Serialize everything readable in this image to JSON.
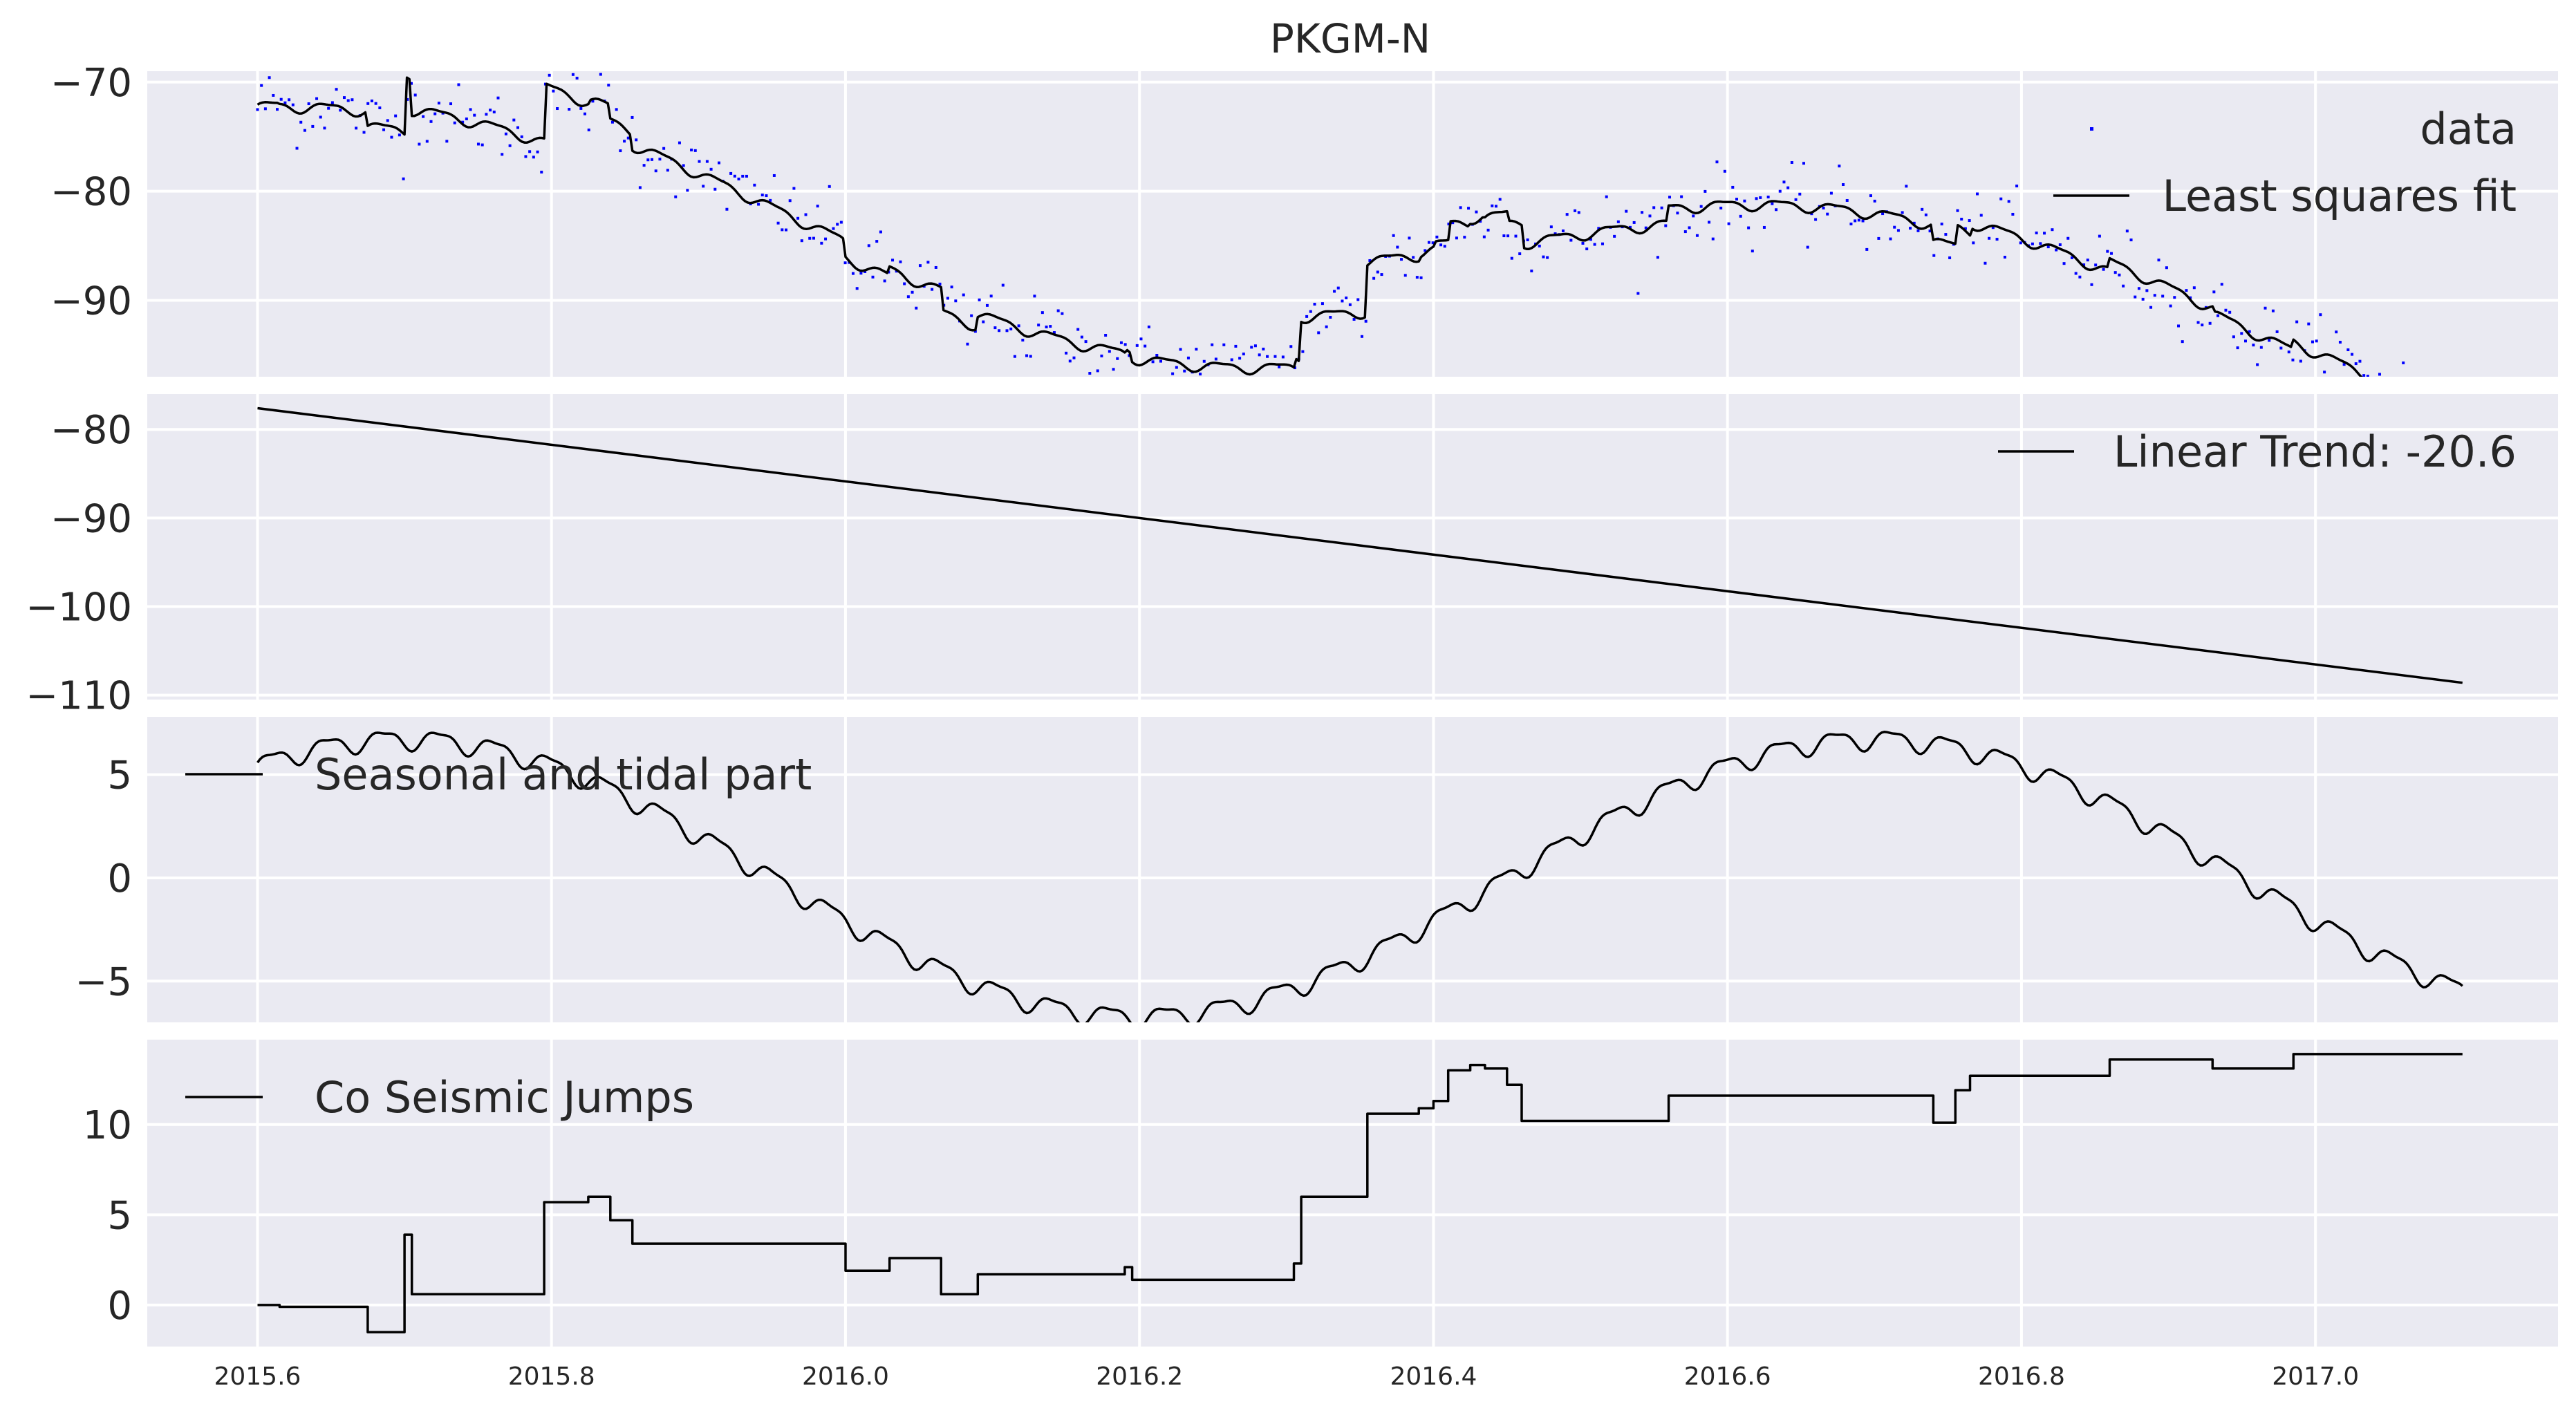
{
  "chart_data": {
    "type": "line",
    "title": "PKGM-N",
    "x_ticks": [
      "2015.6",
      "2015.8",
      "2016.0",
      "2016.2",
      "2016.4",
      "2016.6",
      "2016.8",
      "2017.0"
    ],
    "xlim": [
      2015.525,
      2017.165
    ],
    "grid": true,
    "panels": [
      {
        "name": "observations",
        "ylim": [
          -97,
          -69
        ],
        "y_ticks": [
          "−70",
          "−80",
          "−90"
        ],
        "y_tick_values": [
          -70,
          -80,
          -90
        ],
        "legend_position": "top-right",
        "series": [
          {
            "name": "data",
            "type": "scatter",
            "color": "#0000ff",
            "marker_size": 2.5
          },
          {
            "name": "Least squares fit",
            "type": "line",
            "color": "#000000"
          }
        ]
      },
      {
        "name": "trend",
        "ylim": [
          -110.5,
          -76
        ],
        "y_ticks": [
          "−80",
          "−90",
          "−100",
          "−110"
        ],
        "y_tick_values": [
          -80,
          -90,
          -100,
          -110
        ],
        "legend_position": "top-right",
        "series": [
          {
            "name": "Linear Trend: -20.6",
            "type": "line",
            "color": "#000000",
            "x": [
              2015.6,
              2017.1
            ],
            "values": [
              -77.6,
              -108.6
            ]
          }
        ]
      },
      {
        "name": "seasonal",
        "ylim": [
          -7,
          7.8
        ],
        "y_ticks": [
          "5",
          "0",
          "−5"
        ],
        "y_tick_values": [
          5,
          0,
          -5
        ],
        "legend_position": "top-left",
        "series": [
          {
            "name": "Seasonal and tidal part",
            "type": "line",
            "color": "#000000"
          }
        ]
      },
      {
        "name": "jumps",
        "ylim": [
          -2.3,
          14.7
        ],
        "y_ticks": [
          "10",
          "5",
          "0"
        ],
        "y_tick_values": [
          10,
          5,
          0
        ],
        "legend_position": "top-left",
        "series": [
          {
            "name": "Co Seismic Jumps",
            "type": "line",
            "color": "#000000",
            "step": true,
            "x": [
              2015.6,
              2015.615,
              2015.675,
              2015.7,
              2015.705,
              2015.71,
              2015.795,
              2015.825,
              2015.84,
              2015.855,
              2015.87,
              2016.0,
              2016.03,
              2016.065,
              2016.09,
              2016.19,
              2016.195,
              2016.2,
              2016.305,
              2016.31,
              2016.355,
              2016.375,
              2016.39,
              2016.4,
              2016.41,
              2016.425,
              2016.435,
              2016.45,
              2016.46,
              2016.54,
              2016.56,
              2016.74,
              2016.755,
              2016.765,
              2016.77,
              2016.79,
              2016.86,
              2016.93,
              2016.985,
              2017.1
            ],
            "values": [
              0,
              -0.1,
              -1.5,
              3.9,
              0.6,
              0.6,
              5.7,
              6.0,
              4.7,
              3.4,
              3.4,
              1.9,
              2.6,
              0.6,
              1.7,
              2.1,
              1.4,
              1.4,
              2.3,
              6.0,
              10.6,
              10.6,
              10.9,
              11.3,
              13.0,
              13.3,
              13.1,
              12.2,
              10.2,
              10.2,
              11.6,
              10.1,
              11.9,
              12.7,
              12.7,
              12.7,
              13.6,
              13.1,
              13.9,
              13.9
            ]
          }
        ]
      }
    ]
  }
}
